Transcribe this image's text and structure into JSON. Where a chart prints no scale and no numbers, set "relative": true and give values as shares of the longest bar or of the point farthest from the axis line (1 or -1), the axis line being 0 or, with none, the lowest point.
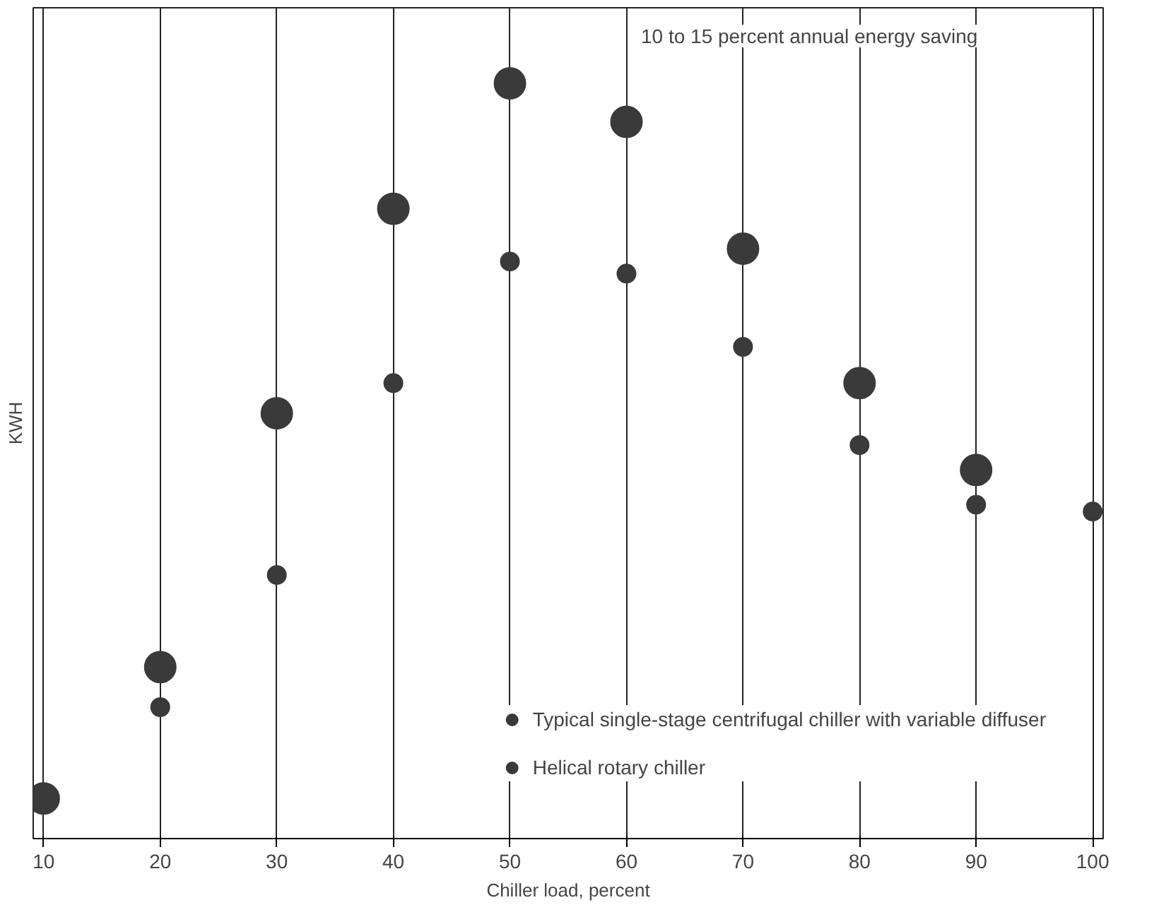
{
  "chart_data": {
    "type": "scatter",
    "xlabel": "Chiller load, percent",
    "ylabel": "KWH",
    "relative": true,
    "x": [
      10,
      20,
      30,
      40,
      50,
      60,
      70,
      80,
      90,
      100
    ],
    "xlim": [
      10,
      100
    ],
    "xticks": [
      10,
      20,
      30,
      40,
      50,
      60,
      70,
      80,
      90,
      100
    ],
    "series": [
      {
        "name": "Typical single-stage centrifugal chiller with variable diffuser",
        "color": "#3a3a3a",
        "values": [
          0.053,
          0.227,
          0.563,
          0.834,
          1,
          0.949,
          0.781,
          0.603,
          0.488,
          null
        ]
      },
      {
        "name": "Helical rotary chiller",
        "color": "#3a3a3a",
        "values": [
          null,
          0.174,
          0.349,
          0.603,
          0.764,
          0.748,
          0.651,
          0.521,
          0.442,
          0.433
        ]
      }
    ],
    "annotations": [
      "10 to 15 percent annual energy saving"
    ],
    "grid": "x",
    "legend": "bottom right",
    "marker": "circle"
  }
}
